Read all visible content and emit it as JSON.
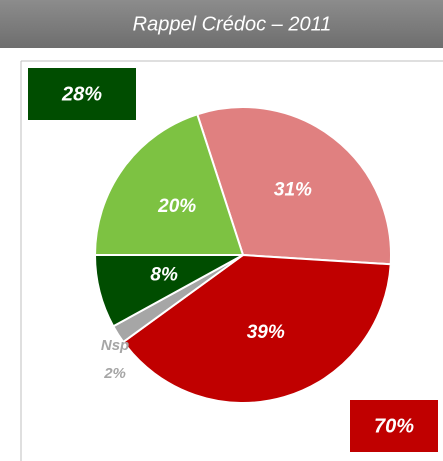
{
  "chart_data": {
    "type": "pie",
    "title": "Rappel Crédoc – 2011",
    "categories": [
      null,
      null,
      "Nsp",
      null,
      null
    ],
    "values": [
      31,
      39,
      2,
      8,
      20
    ],
    "value_labels": [
      "31%",
      "39%",
      "2%",
      "8%",
      "20%"
    ],
    "colors": [
      "#e08080",
      "#c00000",
      "#a6a6a6",
      "#004d00",
      "#7dc242"
    ],
    "annotations": [
      {
        "text": "28%",
        "color": "#004d00",
        "corner": "top-left"
      },
      {
        "text": "70%",
        "color": "#c00000",
        "corner": "bottom-right"
      }
    ]
  }
}
